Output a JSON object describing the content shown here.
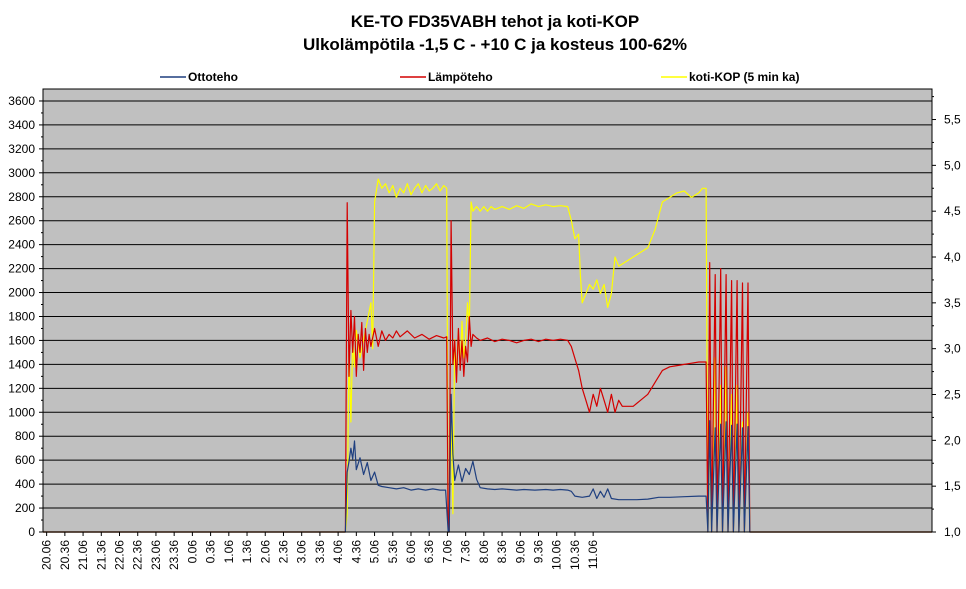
{
  "chart_data": {
    "type": "line",
    "title": "KE-TO FD35VABH tehot ja koti-KOP",
    "subtitle": "Ulkolämpötila -1,5 C - +10 C ja kosteus 100-62%",
    "xlabel": "",
    "ylabel": "",
    "y2label": "",
    "grid": true,
    "legend_position": "top",
    "background_color": "#c0c0c0",
    "x_ticks": [
      "20.06",
      "20.36",
      "21.06",
      "21.36",
      "22.06",
      "22.36",
      "23.06",
      "23.36",
      "0.06",
      "0.36",
      "1.06",
      "1.36",
      "2.06",
      "2.36",
      "3.06",
      "3.36",
      "4.06",
      "4.36",
      "5.06",
      "5.36",
      "6.06",
      "6.36",
      "7.06",
      "7.36",
      "8.06",
      "8.36",
      "9.06",
      "9.36",
      "10.06",
      "10.36",
      "11.06"
    ],
    "xlim": [
      20.0,
      44.4
    ],
    "ylim": [
      0,
      3700
    ],
    "yticks": [
      "0",
      "200",
      "400",
      "600",
      "800",
      "1000",
      "1200",
      "1400",
      "1600",
      "1800",
      "2000",
      "2200",
      "2400",
      "2600",
      "2800",
      "3000",
      "3200",
      "3400",
      "3600"
    ],
    "y2lim": [
      1.0,
      5.833
    ],
    "y2ticks": [
      "1,0",
      "1,5",
      "2,0",
      "2,5",
      "3,0",
      "3,5",
      "4,0",
      "4,5",
      "5,0",
      "5,5"
    ],
    "series": [
      {
        "name": "Ottoteho",
        "color": "#1f3f7f",
        "axis": "left",
        "points": [
          [
            20.0,
            0
          ],
          [
            28.3,
            0
          ],
          [
            28.35,
            500
          ],
          [
            28.4,
            590
          ],
          [
            28.45,
            700
          ],
          [
            28.5,
            610
          ],
          [
            28.55,
            760
          ],
          [
            28.6,
            520
          ],
          [
            28.7,
            620
          ],
          [
            28.8,
            480
          ],
          [
            28.9,
            580
          ],
          [
            29.0,
            430
          ],
          [
            29.1,
            500
          ],
          [
            29.2,
            390
          ],
          [
            29.3,
            380
          ],
          [
            29.5,
            370
          ],
          [
            29.7,
            360
          ],
          [
            29.9,
            370
          ],
          [
            30.1,
            350
          ],
          [
            30.3,
            360
          ],
          [
            30.5,
            350
          ],
          [
            30.7,
            360
          ],
          [
            30.9,
            350
          ],
          [
            31.05,
            350
          ],
          [
            31.12,
            0
          ],
          [
            31.15,
            0
          ],
          [
            31.2,
            1150
          ],
          [
            31.25,
            650
          ],
          [
            31.3,
            430
          ],
          [
            31.4,
            560
          ],
          [
            31.5,
            420
          ],
          [
            31.6,
            530
          ],
          [
            31.7,
            480
          ],
          [
            31.8,
            590
          ],
          [
            31.9,
            440
          ],
          [
            32.0,
            370
          ],
          [
            32.2,
            360
          ],
          [
            32.4,
            355
          ],
          [
            32.6,
            360
          ],
          [
            32.8,
            355
          ],
          [
            33.0,
            350
          ],
          [
            33.2,
            355
          ],
          [
            33.5,
            350
          ],
          [
            33.8,
            355
          ],
          [
            34.0,
            350
          ],
          [
            34.2,
            355
          ],
          [
            34.4,
            350
          ],
          [
            34.5,
            340
          ],
          [
            34.6,
            300
          ],
          [
            34.8,
            290
          ],
          [
            35.0,
            300
          ],
          [
            35.1,
            360
          ],
          [
            35.2,
            280
          ],
          [
            35.3,
            340
          ],
          [
            35.4,
            290
          ],
          [
            35.5,
            360
          ],
          [
            35.6,
            280
          ],
          [
            35.8,
            270
          ],
          [
            36.0,
            270
          ],
          [
            36.3,
            270
          ],
          [
            36.6,
            275
          ],
          [
            36.9,
            290
          ],
          [
            37.2,
            290
          ],
          [
            37.6,
            295
          ],
          [
            38.0,
            300
          ],
          [
            38.2,
            300
          ],
          [
            38.25,
            0
          ],
          [
            38.3,
            930
          ],
          [
            38.35,
            0
          ],
          [
            38.45,
            870
          ],
          [
            38.5,
            0
          ],
          [
            38.6,
            900
          ],
          [
            38.65,
            0
          ],
          [
            38.75,
            920
          ],
          [
            38.8,
            0
          ],
          [
            38.9,
            890
          ],
          [
            38.95,
            0
          ],
          [
            39.05,
            900
          ],
          [
            39.1,
            0
          ],
          [
            39.2,
            870
          ],
          [
            39.25,
            0
          ],
          [
            39.35,
            880
          ],
          [
            39.4,
            0
          ],
          [
            44.4,
            0
          ]
        ]
      },
      {
        "name": "Lämpöteho",
        "color": "#d40000",
        "axis": "left",
        "points": [
          [
            20.0,
            0
          ],
          [
            28.3,
            0
          ],
          [
            28.35,
            2750
          ],
          [
            28.4,
            1300
          ],
          [
            28.45,
            1850
          ],
          [
            28.5,
            1500
          ],
          [
            28.55,
            1800
          ],
          [
            28.6,
            1300
          ],
          [
            28.65,
            1650
          ],
          [
            28.7,
            1500
          ],
          [
            28.75,
            1750
          ],
          [
            28.8,
            1350
          ],
          [
            28.85,
            1700
          ],
          [
            28.9,
            1500
          ],
          [
            28.95,
            1650
          ],
          [
            29.0,
            1550
          ],
          [
            29.1,
            1700
          ],
          [
            29.2,
            1550
          ],
          [
            29.3,
            1680
          ],
          [
            29.4,
            1600
          ],
          [
            29.5,
            1650
          ],
          [
            29.6,
            1620
          ],
          [
            29.7,
            1680
          ],
          [
            29.8,
            1630
          ],
          [
            30.0,
            1680
          ],
          [
            30.2,
            1620
          ],
          [
            30.4,
            1650
          ],
          [
            30.6,
            1610
          ],
          [
            30.8,
            1640
          ],
          [
            31.0,
            1620
          ],
          [
            31.08,
            1630
          ],
          [
            31.12,
            0
          ],
          [
            31.15,
            0
          ],
          [
            31.2,
            2600
          ],
          [
            31.25,
            1400
          ],
          [
            31.3,
            1600
          ],
          [
            31.35,
            1250
          ],
          [
            31.4,
            1700
          ],
          [
            31.45,
            1350
          ],
          [
            31.5,
            1600
          ],
          [
            31.55,
            1300
          ],
          [
            31.6,
            1550
          ],
          [
            31.65,
            1420
          ],
          [
            31.7,
            1800
          ],
          [
            31.75,
            1550
          ],
          [
            31.8,
            1650
          ],
          [
            31.9,
            1620
          ],
          [
            32.0,
            1600
          ],
          [
            32.2,
            1620
          ],
          [
            32.4,
            1590
          ],
          [
            32.6,
            1610
          ],
          [
            32.8,
            1600
          ],
          [
            33.0,
            1580
          ],
          [
            33.2,
            1600
          ],
          [
            33.4,
            1610
          ],
          [
            33.6,
            1590
          ],
          [
            33.8,
            1610
          ],
          [
            34.0,
            1600
          ],
          [
            34.2,
            1610
          ],
          [
            34.4,
            1600
          ],
          [
            34.5,
            1550
          ],
          [
            34.6,
            1450
          ],
          [
            34.7,
            1350
          ],
          [
            34.8,
            1200
          ],
          [
            34.9,
            1100
          ],
          [
            35.0,
            1000
          ],
          [
            35.1,
            1150
          ],
          [
            35.2,
            1050
          ],
          [
            35.3,
            1200
          ],
          [
            35.4,
            1100
          ],
          [
            35.5,
            1000
          ],
          [
            35.6,
            1150
          ],
          [
            35.7,
            1000
          ],
          [
            35.8,
            1100
          ],
          [
            35.9,
            1050
          ],
          [
            36.0,
            1050
          ],
          [
            36.2,
            1050
          ],
          [
            36.4,
            1100
          ],
          [
            36.6,
            1150
          ],
          [
            36.8,
            1250
          ],
          [
            37.0,
            1350
          ],
          [
            37.2,
            1380
          ],
          [
            37.4,
            1390
          ],
          [
            37.6,
            1400
          ],
          [
            37.8,
            1410
          ],
          [
            38.0,
            1420
          ],
          [
            38.2,
            1420
          ],
          [
            38.25,
            0
          ],
          [
            38.3,
            2250
          ],
          [
            38.35,
            0
          ],
          [
            38.45,
            2150
          ],
          [
            38.5,
            0
          ],
          [
            38.6,
            2200
          ],
          [
            38.65,
            0
          ],
          [
            38.75,
            2150
          ],
          [
            38.8,
            0
          ],
          [
            38.9,
            2100
          ],
          [
            38.95,
            0
          ],
          [
            39.05,
            2100
          ],
          [
            39.1,
            0
          ],
          [
            39.2,
            2080
          ],
          [
            39.25,
            0
          ],
          [
            39.35,
            2080
          ],
          [
            39.4,
            0
          ],
          [
            44.4,
            0
          ]
        ]
      },
      {
        "name": "koti-KOP (5 min ka)",
        "color": "#ffff00",
        "axis": "right",
        "points": [
          [
            20.0,
            1.0
          ],
          [
            28.3,
            1.0
          ],
          [
            28.35,
            1.2
          ],
          [
            28.4,
            3.0
          ],
          [
            28.45,
            2.2
          ],
          [
            28.5,
            3.1
          ],
          [
            28.55,
            2.8
          ],
          [
            28.6,
            3.2
          ],
          [
            28.7,
            2.9
          ],
          [
            28.8,
            3.1
          ],
          [
            28.9,
            3.3
          ],
          [
            29.0,
            3.5
          ],
          [
            29.05,
            3.0
          ],
          [
            29.1,
            4.6
          ],
          [
            29.2,
            4.85
          ],
          [
            29.3,
            4.75
          ],
          [
            29.4,
            4.8
          ],
          [
            29.5,
            4.7
          ],
          [
            29.6,
            4.78
          ],
          [
            29.7,
            4.65
          ],
          [
            29.8,
            4.75
          ],
          [
            29.9,
            4.7
          ],
          [
            30.0,
            4.8
          ],
          [
            30.1,
            4.68
          ],
          [
            30.2,
            4.75
          ],
          [
            30.3,
            4.8
          ],
          [
            30.4,
            4.7
          ],
          [
            30.5,
            4.78
          ],
          [
            30.6,
            4.72
          ],
          [
            30.7,
            4.75
          ],
          [
            30.8,
            4.8
          ],
          [
            30.9,
            4.72
          ],
          [
            31.0,
            4.78
          ],
          [
            31.08,
            4.75
          ],
          [
            31.12,
            1.0
          ],
          [
            31.15,
            1.0
          ],
          [
            31.2,
            2.3
          ],
          [
            31.25,
            1.2
          ],
          [
            31.3,
            3.1
          ],
          [
            31.35,
            2.7
          ],
          [
            31.4,
            3.2
          ],
          [
            31.45,
            2.8
          ],
          [
            31.5,
            3.3
          ],
          [
            31.55,
            2.9
          ],
          [
            31.6,
            3.1
          ],
          [
            31.65,
            3.5
          ],
          [
            31.7,
            3.2
          ],
          [
            31.75,
            4.6
          ],
          [
            31.8,
            4.5
          ],
          [
            31.9,
            4.55
          ],
          [
            32.0,
            4.5
          ],
          [
            32.1,
            4.55
          ],
          [
            32.2,
            4.5
          ],
          [
            32.3,
            4.55
          ],
          [
            32.4,
            4.52
          ],
          [
            32.6,
            4.55
          ],
          [
            32.8,
            4.52
          ],
          [
            33.0,
            4.56
          ],
          [
            33.2,
            4.53
          ],
          [
            33.4,
            4.58
          ],
          [
            33.6,
            4.55
          ],
          [
            33.8,
            4.57
          ],
          [
            34.0,
            4.55
          ],
          [
            34.2,
            4.56
          ],
          [
            34.4,
            4.55
          ],
          [
            34.5,
            4.4
          ],
          [
            34.6,
            4.2
          ],
          [
            34.7,
            4.25
          ],
          [
            34.75,
            3.8
          ],
          [
            34.8,
            3.5
          ],
          [
            34.9,
            3.6
          ],
          [
            35.0,
            3.7
          ],
          [
            35.1,
            3.65
          ],
          [
            35.2,
            3.75
          ],
          [
            35.3,
            3.6
          ],
          [
            35.4,
            3.7
          ],
          [
            35.5,
            3.45
          ],
          [
            35.6,
            3.6
          ],
          [
            35.7,
            4.0
          ],
          [
            35.8,
            3.9
          ],
          [
            36.0,
            3.95
          ],
          [
            36.2,
            4.0
          ],
          [
            36.4,
            4.05
          ],
          [
            36.6,
            4.1
          ],
          [
            36.8,
            4.3
          ],
          [
            37.0,
            4.6
          ],
          [
            37.2,
            4.65
          ],
          [
            37.4,
            4.7
          ],
          [
            37.6,
            4.72
          ],
          [
            37.8,
            4.65
          ],
          [
            38.0,
            4.7
          ],
          [
            38.1,
            4.75
          ],
          [
            38.2,
            4.75
          ],
          [
            38.25,
            1.0
          ],
          [
            38.3,
            2.1
          ],
          [
            38.35,
            1.0
          ],
          [
            38.45,
            2.9
          ],
          [
            38.5,
            1.0
          ],
          [
            38.6,
            2.6
          ],
          [
            38.65,
            1.0
          ],
          [
            38.75,
            2.8
          ],
          [
            38.8,
            1.0
          ],
          [
            38.9,
            2.5
          ],
          [
            38.95,
            1.0
          ],
          [
            39.05,
            2.6
          ],
          [
            39.1,
            1.0
          ],
          [
            39.2,
            2.2
          ],
          [
            39.25,
            1.0
          ],
          [
            39.35,
            2.3
          ],
          [
            39.4,
            1.0
          ],
          [
            44.4,
            1.0
          ]
        ]
      }
    ]
  }
}
